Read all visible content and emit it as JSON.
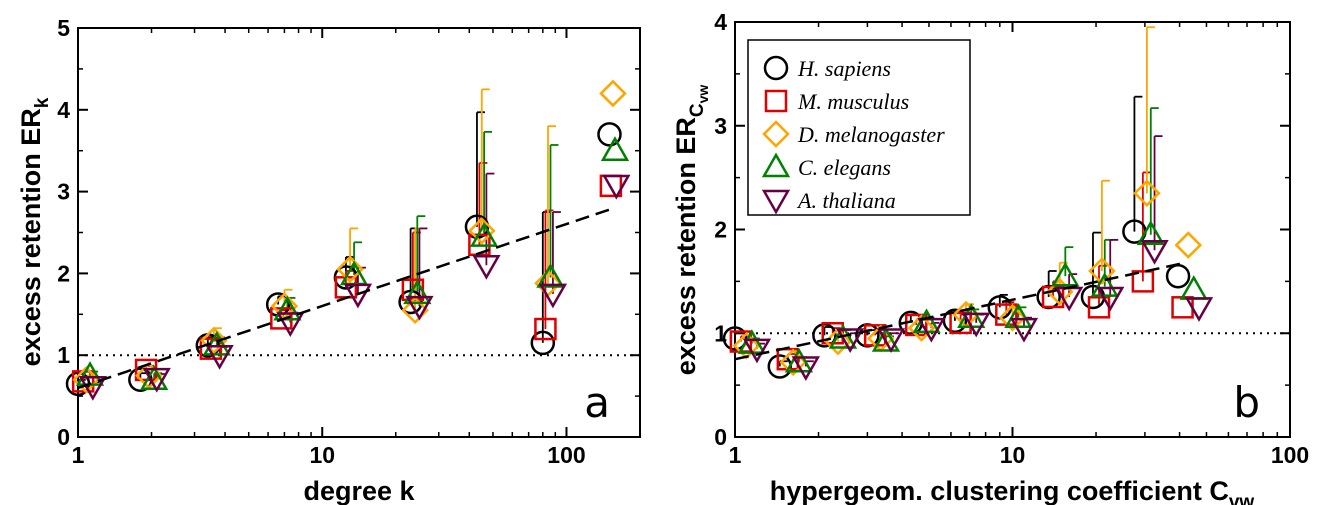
{
  "chart_data": [
    {
      "type": "scatter",
      "panel_label": "a",
      "xlabel": "degree k",
      "ylabel_main": "excess retention ER",
      "ylabel_sub": "k",
      "xscale": "log",
      "xlim": [
        1,
        200
      ],
      "ylim": [
        0,
        5
      ],
      "x_ticks": [
        1,
        10,
        100
      ],
      "x_tick_labels": [
        "1",
        "10",
        "100"
      ],
      "y_ticks": [
        0,
        1,
        2,
        3,
        4,
        5
      ],
      "y_tick_labels": [
        "0",
        "1",
        "2",
        "3",
        "4",
        "5"
      ],
      "reference_line": 1,
      "fit": {
        "x": [
          1,
          150
        ],
        "y": [
          0.6,
          2.78
        ]
      },
      "series": [
        {
          "name": "H. sapiens",
          "color": "#000000",
          "marker": "circle",
          "x": [
            1.0,
            1.8,
            3.4,
            6.6,
            12.5,
            23,
            43,
            80,
            150
          ],
          "y": [
            0.65,
            0.7,
            1.12,
            1.62,
            1.95,
            1.65,
            2.57,
            1.15,
            3.7
          ],
          "err": [
            0.05,
            0.08,
            0.1,
            0.1,
            0.25,
            0.9,
            1.4,
            1.6,
            0
          ]
        },
        {
          "name": "M. musculus",
          "color": "#e00000",
          "marker": "square",
          "x": [
            1.05,
            1.9,
            3.5,
            6.8,
            12.5,
            23.5,
            44,
            82,
            152
          ],
          "y": [
            0.68,
            0.82,
            1.08,
            1.45,
            1.83,
            1.8,
            2.35,
            1.32,
            3.07
          ],
          "err": [
            0.05,
            0.05,
            0.1,
            0.1,
            0.2,
            0.7,
            1.0,
            1.45,
            0
          ]
        },
        {
          "name": "D. melanogaster",
          "color": "#ffa500",
          "marker": "diamond",
          "x": [
            1.08,
            1.95,
            3.6,
            7.0,
            13,
            24,
            45,
            84,
            155
          ],
          "y": [
            0.7,
            0.75,
            1.18,
            1.6,
            2.05,
            1.55,
            2.52,
            1.88,
            4.2
          ],
          "err": [
            0.05,
            0.08,
            0.15,
            0.2,
            0.5,
            1.0,
            1.73,
            1.92,
            0
          ]
        },
        {
          "name": "C. elegans",
          "color": "#008000",
          "marker": "triangle-up",
          "x": [
            1.12,
            2.05,
            3.7,
            7.2,
            13.5,
            24.5,
            46,
            86,
            158
          ],
          "y": [
            0.75,
            0.7,
            1.12,
            1.55,
            1.98,
            1.75,
            2.45,
            1.95,
            3.5
          ],
          "err": [
            0.05,
            0.08,
            0.1,
            0.15,
            0.4,
            0.95,
            1.28,
            1.62,
            0
          ]
        },
        {
          "name": "A. thaliana",
          "color": "#660044",
          "marker": "triangle-down",
          "x": [
            1.15,
            2.1,
            3.8,
            7.4,
            14,
            25,
            47,
            88,
            160
          ],
          "y": [
            0.62,
            0.72,
            1.0,
            1.4,
            1.75,
            1.6,
            2.1,
            1.75,
            3.08
          ],
          "err": [
            0.05,
            0.05,
            0.1,
            0.12,
            0.32,
            0.95,
            1.12,
            1.0,
            0
          ]
        }
      ]
    },
    {
      "type": "scatter",
      "panel_label": "b",
      "xlabel_main": "hypergeom. clustering coefficient C",
      "xlabel_sub": "vw",
      "ylabel_main": "excess retention ER",
      "ylabel_sub": "C",
      "ylabel_subsub": "vw",
      "xscale": "log",
      "xlim": [
        1,
        100
      ],
      "ylim": [
        0,
        4
      ],
      "x_ticks": [
        1,
        10,
        100
      ],
      "x_tick_labels": [
        "1",
        "10",
        "100"
      ],
      "y_ticks": [
        0,
        1,
        2,
        3,
        4
      ],
      "y_tick_labels": [
        "0",
        "1",
        "2",
        "3",
        "4"
      ],
      "reference_line": 1,
      "fit": {
        "x": [
          1,
          42
        ],
        "y": [
          0.75,
          1.68
        ]
      },
      "legend": {
        "position": "top-left"
      },
      "series": [
        {
          "name": "H. sapiens",
          "color": "#000000",
          "marker": "circle",
          "x": [
            1.0,
            1.45,
            2.1,
            3.0,
            4.3,
            6.2,
            9.0,
            13.5,
            19.5,
            27.5,
            39.5
          ],
          "y": [
            0.95,
            0.68,
            0.98,
            0.98,
            1.1,
            1.12,
            1.25,
            1.35,
            1.35,
            1.98,
            1.55
          ],
          "err": [
            0.05,
            0.05,
            0.08,
            0.05,
            0.08,
            0.1,
            0.12,
            0.25,
            0.62,
            1.3,
            0
          ]
        },
        {
          "name": "M. musculus",
          "color": "#e00000",
          "marker": "square",
          "x": [
            1.05,
            1.55,
            2.25,
            3.2,
            4.5,
            6.5,
            9.5,
            14,
            20.5,
            29.5,
            41
          ],
          "y": [
            0.92,
            0.75,
            1.0,
            0.98,
            1.08,
            1.1,
            1.18,
            1.35,
            1.25,
            1.5,
            1.25
          ],
          "err": [
            0.05,
            0.05,
            0.05,
            0.05,
            0.05,
            0.08,
            0.12,
            0.15,
            0.4,
            1.05,
            0
          ]
        },
        {
          "name": "D. melanogaster",
          "color": "#ffa500",
          "marker": "diamond",
          "x": [
            1.1,
            1.62,
            2.35,
            3.35,
            4.7,
            6.8,
            10,
            14.8,
            21,
            30.5,
            43
          ],
          "y": [
            0.88,
            0.72,
            0.92,
            0.95,
            1.05,
            1.18,
            1.15,
            1.4,
            1.6,
            2.35,
            1.85
          ],
          "err": [
            0.05,
            0.05,
            0.05,
            0.08,
            0.08,
            0.1,
            0.12,
            0.28,
            0.87,
            1.6,
            0
          ]
        },
        {
          "name": "C. elegans",
          "color": "#008000",
          "marker": "triangle-up",
          "x": [
            1.15,
            1.7,
            2.45,
            3.5,
            4.9,
            7.1,
            10.5,
            15.5,
            21.5,
            31.5,
            45
          ],
          "y": [
            0.9,
            0.72,
            0.95,
            0.92,
            1.1,
            1.15,
            1.15,
            1.55,
            1.45,
            1.95,
            1.42
          ],
          "err": [
            0.05,
            0.05,
            0.08,
            0.05,
            0.05,
            0.08,
            0.1,
            0.28,
            0.45,
            1.22,
            0
          ]
        },
        {
          "name": "A. thaliana",
          "color": "#660044",
          "marker": "triangle-down",
          "x": [
            1.2,
            1.8,
            2.6,
            3.65,
            5.1,
            7.4,
            11,
            16,
            22.5,
            32.5,
            47
          ],
          "y": [
            0.85,
            0.68,
            0.95,
            0.95,
            1.05,
            1.1,
            1.05,
            1.35,
            1.35,
            1.8,
            1.25
          ],
          "err": [
            0.05,
            0.05,
            0.05,
            0.05,
            0.05,
            0.08,
            0.1,
            0.22,
            0.55,
            1.1,
            0
          ]
        }
      ]
    }
  ]
}
